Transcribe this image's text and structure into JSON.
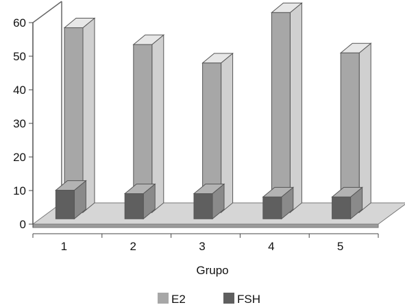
{
  "chart_data": {
    "type": "bar",
    "categories": [
      "1",
      "2",
      "3",
      "4",
      "5"
    ],
    "series": [
      {
        "name": "E2",
        "values": [
          55,
          50,
          44.5,
          59.5,
          47.5
        ]
      },
      {
        "name": "FSH",
        "values": [
          8.5,
          7.5,
          7.5,
          6.5,
          6.5
        ]
      }
    ],
    "xlabel": "Grupo",
    "ylabel": "",
    "ylim": [
      0,
      60
    ],
    "yticks": [
      0,
      10,
      20,
      30,
      40,
      50,
      60
    ],
    "grid": false,
    "legend": "bottom",
    "colors": {
      "E2": {
        "front": "#a7a7a7",
        "side": "#d0d0d0",
        "top": "#e7e7e7"
      },
      "FSH": {
        "front": "#5f5f5f",
        "side": "#8a8a8a",
        "top": "#b3b3b3"
      },
      "floor": "#d6d6d6",
      "floor_front": "#9c9c9c"
    }
  }
}
